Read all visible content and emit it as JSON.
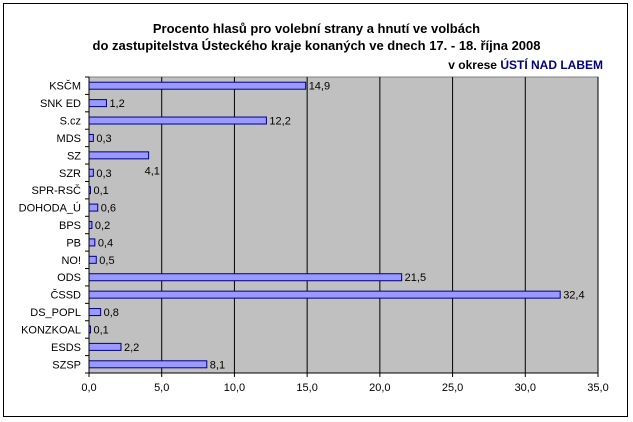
{
  "chart_data": {
    "type": "bar",
    "orientation": "horizontal",
    "title": "Procento hlasů pro volební strany a hnutí ve volbách",
    "title_line2": "do zastupitelstva Ústeckého kraje konaných ve dnech 17. - 18. října 2008",
    "subtitle_prefix": "v okrese",
    "subtitle_highlight": "ÚSTÍ NAD LABEM",
    "categories": [
      "KSČM",
      "SNK ED",
      "S.cz",
      "MDS",
      "SZ",
      "SZR",
      "SPR-RSČ",
      "DOHODA_Ú",
      "BPS",
      "PB",
      "NO!",
      "ODS",
      "ČSSD",
      "DS_POPL",
      "KONZKOAL",
      "ESDS",
      "SZSP"
    ],
    "values": [
      14.9,
      1.2,
      12.2,
      0.3,
      4.1,
      0.3,
      0.1,
      0.6,
      0.2,
      0.4,
      0.5,
      21.5,
      32.4,
      0.8,
      0.1,
      2.2,
      8.1
    ],
    "value_labels": [
      "14,9",
      "1,2",
      "12,2",
      "0,3",
      "4,1",
      "0,3",
      "0,1",
      "0,6",
      "0,2",
      "0,4",
      "0,5",
      "21,5",
      "32,4",
      "0,8",
      "0,1",
      "2,2",
      "8,1"
    ],
    "xlim": [
      0,
      35
    ],
    "xticks": [
      0,
      5,
      10,
      15,
      20,
      25,
      30,
      35
    ],
    "xtick_labels": [
      "0,0",
      "5,0",
      "10,0",
      "15,0",
      "20,0",
      "25,0",
      "30,0",
      "35,0"
    ],
    "grid": true,
    "legend": "none",
    "colors": {
      "bar_fill": "#9999ff",
      "bar_stroke": "#000080",
      "plot_background": "#c0c0c0",
      "accent": "#000080"
    }
  }
}
